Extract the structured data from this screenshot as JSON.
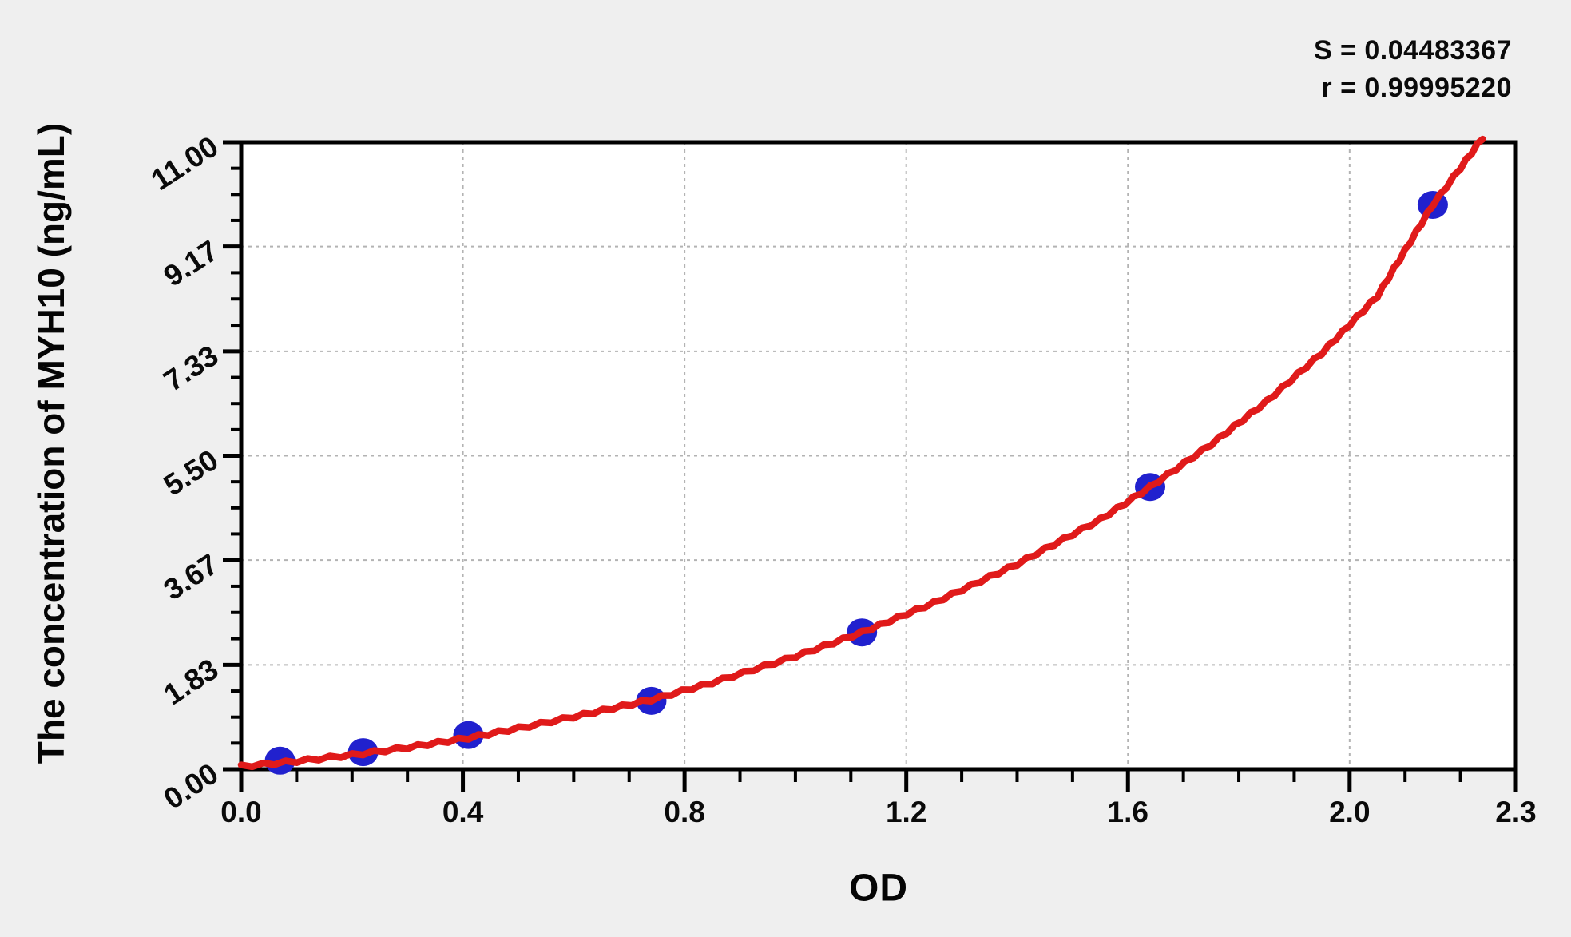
{
  "page": {
    "background_color": "#efefef",
    "plot_background_color": "#ffffff"
  },
  "stats": {
    "s_line": "S = 0.04483367",
    "r_line": "r = 0.99995220"
  },
  "colors": {
    "point_blue": "#2121ce",
    "curve_red": "#e01a1a",
    "axis_black": "#000000",
    "grid_gray": "#b3b3b3",
    "text_black": "#0a0a0a"
  },
  "chart_data": {
    "type": "scatter",
    "title": "",
    "xlabel": "OD",
    "ylabel": "The concentration of MYH10 (ng/mL)",
    "xlim": [
      0,
      2.3
    ],
    "ylim": [
      0,
      11
    ],
    "grid": {
      "show": true,
      "style": "dashed",
      "on": "major-ticks",
      "legend": "none"
    },
    "x_tick_values": [
      0.0,
      0.4,
      0.8,
      1.2,
      1.6,
      2.0,
      2.3
    ],
    "x_tick_labels": [
      "0.0",
      "0.4",
      "0.8",
      "1.2",
      "1.6",
      "2.0",
      "2.3"
    ],
    "x_minor_tick_step": 0.1,
    "y_tick_values": [
      0.0,
      1.83,
      3.67,
      5.5,
      7.33,
      9.17,
      11.0
    ],
    "y_tick_labels": [
      "0.00",
      "1.83",
      "3.67",
      "5.50",
      "7.33",
      "9.17",
      "11.00"
    ],
    "y_minor_ticks_per_interval": 3,
    "series": [
      {
        "name": "standard-points",
        "type": "scatter",
        "color": "#2121ce",
        "marker": "filled-circle",
        "x_od": [
          0.07,
          0.22,
          0.41,
          0.74,
          1.12,
          1.64,
          2.15
        ],
        "y_conc_ng_ml": [
          0.15,
          0.3,
          0.6,
          1.2,
          2.4,
          4.95,
          9.9
        ]
      },
      {
        "name": "fitted-curve",
        "type": "line",
        "color": "#e01a1a",
        "points": [
          [
            0.0,
            0.05
          ],
          [
            0.1,
            0.14
          ],
          [
            0.2,
            0.25
          ],
          [
            0.3,
            0.38
          ],
          [
            0.41,
            0.55
          ],
          [
            0.5,
            0.72
          ],
          [
            0.6,
            0.92
          ],
          [
            0.74,
            1.22
          ],
          [
            0.85,
            1.52
          ],
          [
            1.0,
            1.98
          ],
          [
            1.12,
            2.4
          ],
          [
            1.25,
            2.92
          ],
          [
            1.4,
            3.6
          ],
          [
            1.55,
            4.38
          ],
          [
            1.64,
            4.95
          ],
          [
            1.75,
            5.7
          ],
          [
            1.85,
            6.45
          ],
          [
            1.95,
            7.3
          ],
          [
            2.05,
            8.3
          ],
          [
            2.15,
            9.9
          ],
          [
            2.2,
            10.55
          ],
          [
            2.24,
            11.08
          ]
        ]
      }
    ],
    "annotations": [
      "S = 0.04483367",
      "r = 0.99995220"
    ]
  }
}
